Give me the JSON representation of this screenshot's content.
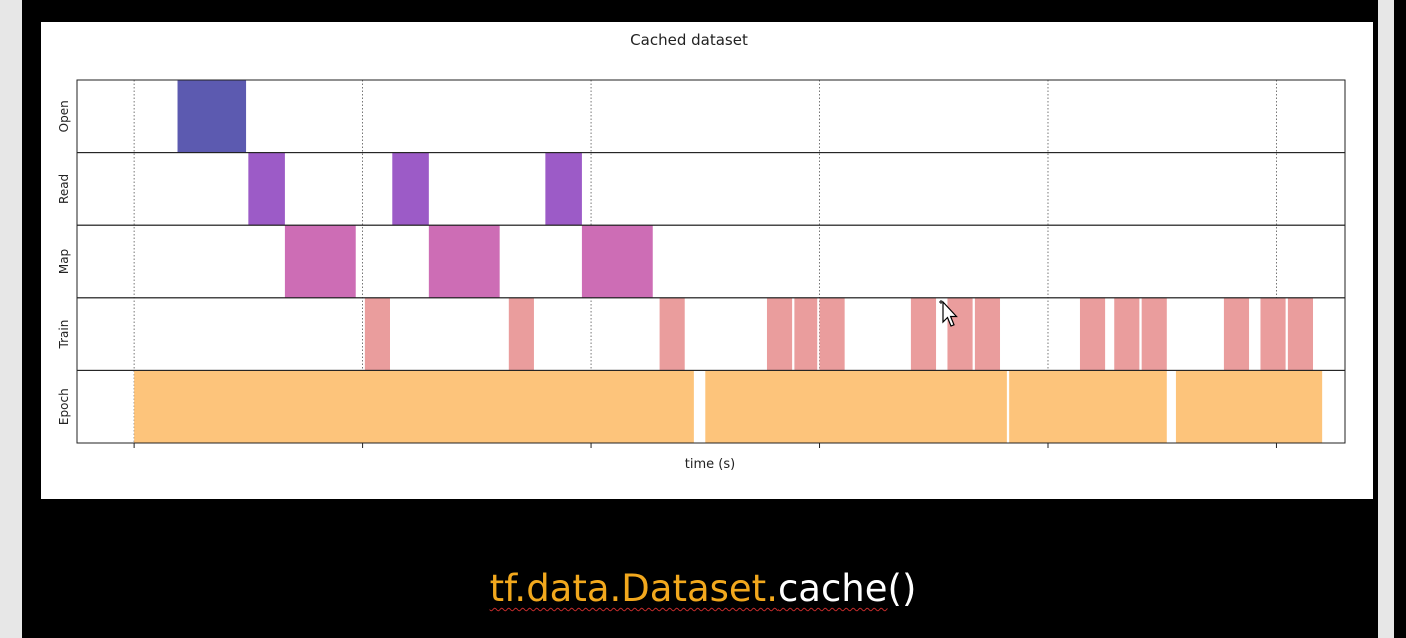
{
  "chart_data": {
    "type": "timeline",
    "title": "Cached dataset",
    "xlabel": "time (s)",
    "ylabel": "",
    "xlim": [
      -0.25,
      5.3
    ],
    "grid": true,
    "rows": [
      "Open",
      "Read",
      "Map",
      "Train",
      "Epoch"
    ],
    "colors": {
      "Open": "#5c5ab0",
      "Read": "#9c5bc7",
      "Map": "#cd6db5",
      "Train": "#ea9d9d",
      "Epoch": "#fdc47b"
    },
    "intervals": {
      "Open": [
        [
          0.19,
          0.49
        ]
      ],
      "Read": [
        [
          0.5,
          0.66
        ],
        [
          1.13,
          1.29
        ],
        [
          1.8,
          1.96
        ]
      ],
      "Map": [
        [
          0.66,
          0.97
        ],
        [
          1.29,
          1.6
        ],
        [
          1.96,
          2.27
        ]
      ],
      "Train": [
        [
          1.01,
          1.12
        ],
        [
          1.64,
          1.75
        ],
        [
          2.3,
          2.41
        ],
        [
          2.77,
          2.88
        ],
        [
          2.89,
          2.99
        ],
        [
          3.0,
          3.11
        ],
        [
          3.4,
          3.51
        ],
        [
          3.56,
          3.67
        ],
        [
          3.68,
          3.79
        ],
        [
          4.14,
          4.25
        ],
        [
          4.29,
          4.4
        ],
        [
          4.41,
          4.52
        ],
        [
          4.77,
          4.88
        ],
        [
          4.93,
          5.04
        ],
        [
          5.05,
          5.16
        ]
      ],
      "Epoch": [
        [
          0.0,
          2.45
        ],
        [
          2.5,
          3.82
        ],
        [
          3.83,
          4.52
        ],
        [
          4.56,
          5.2
        ]
      ]
    }
  },
  "caption": {
    "prefix": "tf.data.Dataset.",
    "method": "cache",
    "parens": "()"
  }
}
